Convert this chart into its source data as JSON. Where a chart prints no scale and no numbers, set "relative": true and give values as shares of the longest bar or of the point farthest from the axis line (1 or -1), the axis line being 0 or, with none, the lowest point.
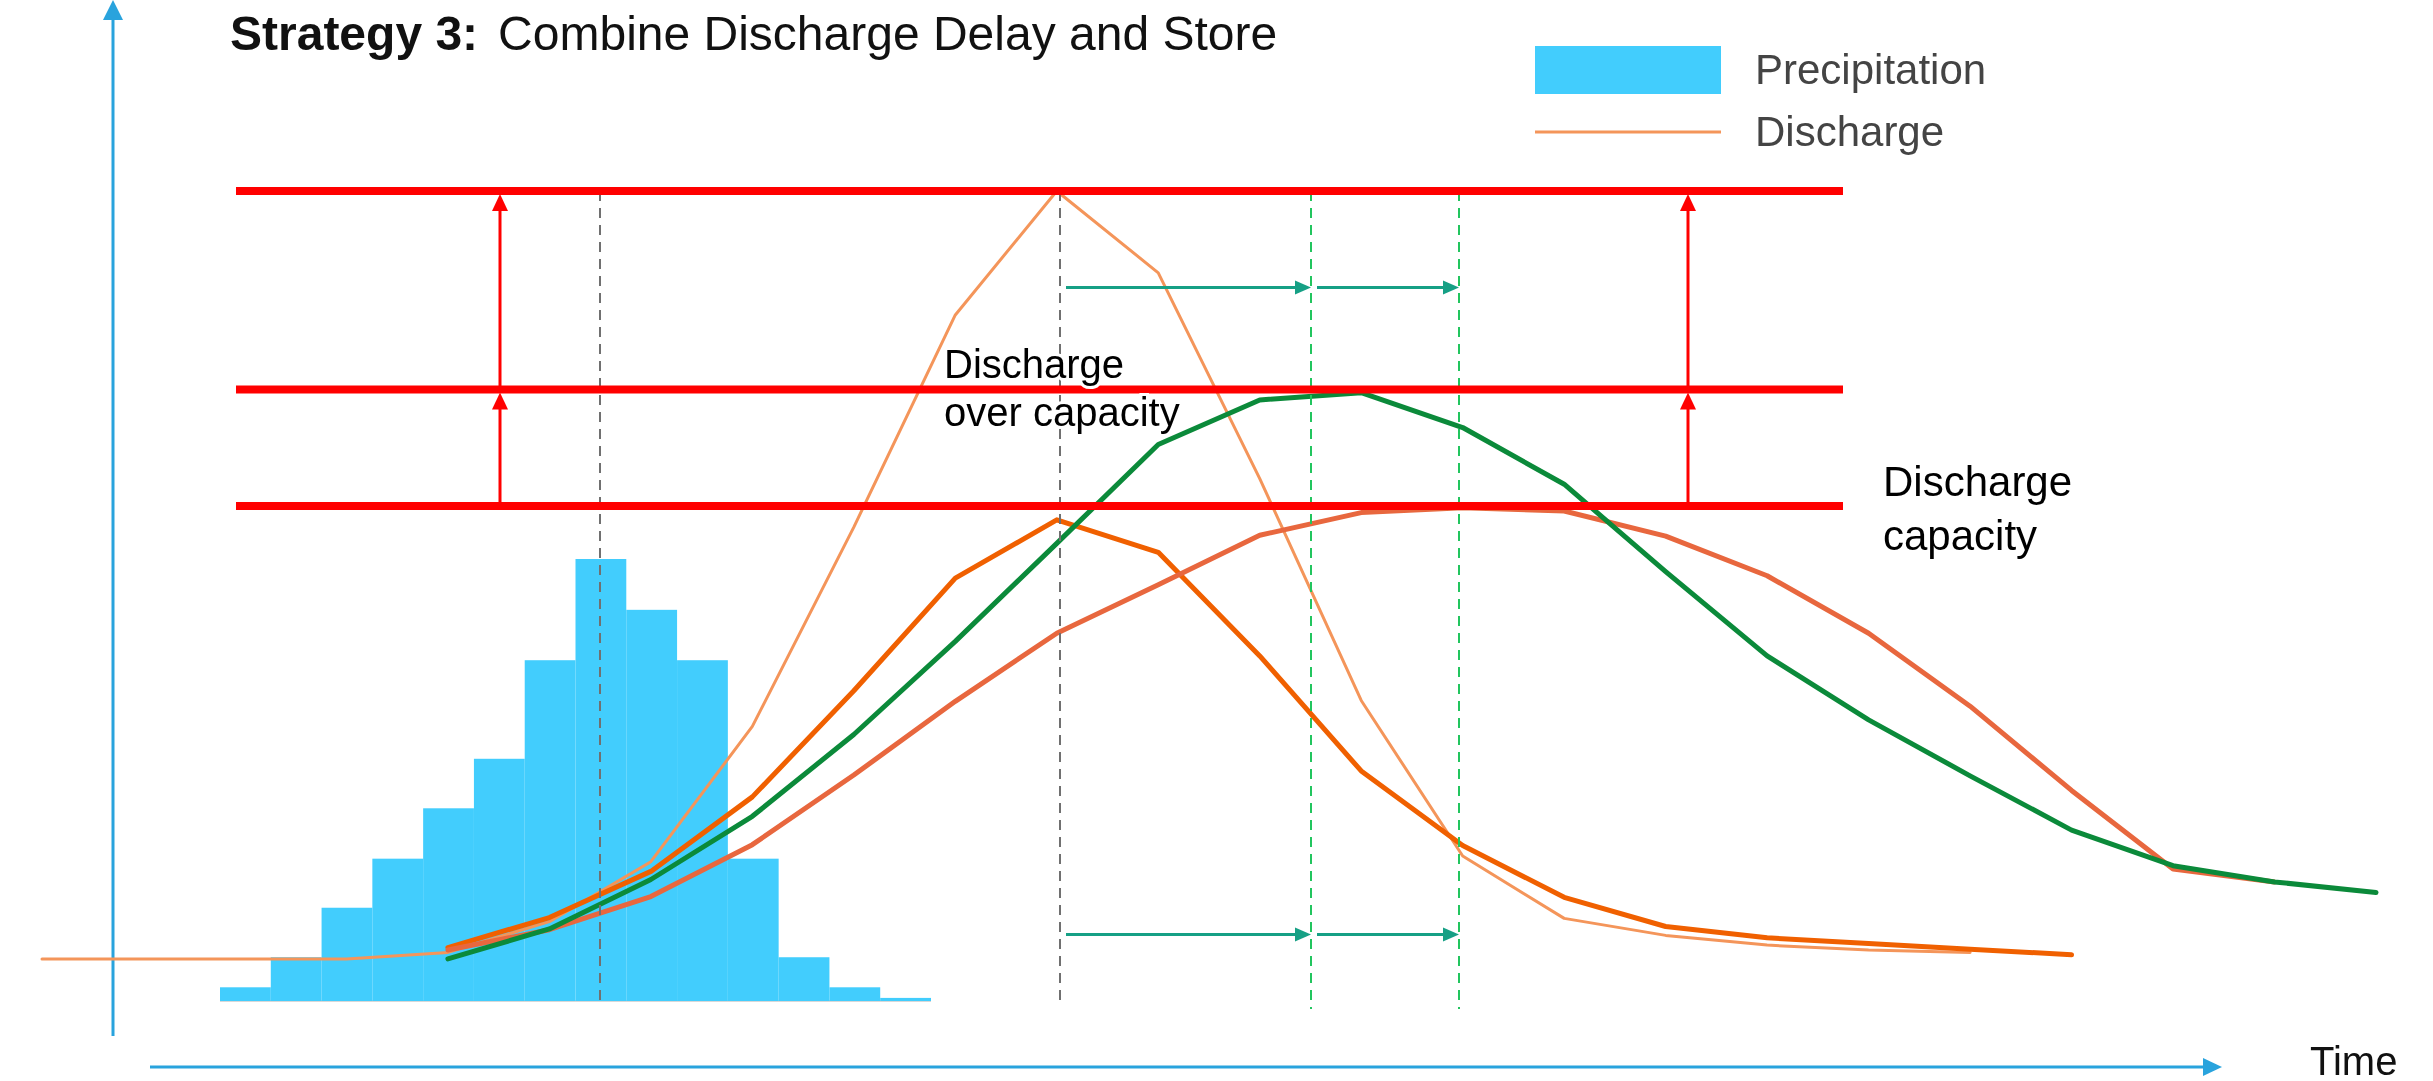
{
  "chart_data": [
    {
      "type": "bar",
      "relative": true,
      "legend": "top right",
      "categories": [
        null,
        null,
        null,
        null,
        null,
        null,
        null,
        null,
        null,
        null,
        null,
        null,
        null,
        null
      ],
      "series": [
        {
          "name": "Precipitation",
          "color": "#42cdfd",
          "values": [
            0.031,
            0.099,
            0.211,
            0.322,
            0.436,
            0.548,
            0.771,
            1,
            0.885,
            0.771,
            0.322,
            0.099,
            0.031,
            0.007
          ]
        }
      ]
    },
    {
      "type": "line",
      "relative": true,
      "title": "Strategy 3:",
      "subtitle": "Combine Discharge Delay and Store",
      "xlabel": "Time",
      "legend": "top right",
      "categories": [
        null,
        null,
        null,
        null,
        null,
        null,
        null,
        null,
        null,
        null,
        null,
        null,
        null,
        null,
        null,
        null,
        null,
        null,
        null,
        null,
        null,
        null,
        null,
        null
      ],
      "series": [
        {
          "name": "Discharge",
          "color": "#f4955a",
          "values": [
            0.052,
            0.052,
            0.052,
            0.052,
            0.06,
            0.098,
            0.172,
            0.339,
            0.585,
            0.847,
            1,
            0.899,
            0.645,
            0.371,
            0.179,
            0.102,
            0.081,
            0.069,
            0.063,
            0.06,
            null,
            null,
            null,
            null
          ]
        },
        {
          "color": "#f06000",
          "values": [
            null,
            null,
            null,
            null,
            0.066,
            0.103,
            0.16,
            0.252,
            0.383,
            0.522,
            0.594,
            0.554,
            0.426,
            0.284,
            0.192,
            0.128,
            0.092,
            0.078,
            0.071,
            0.064,
            0.057,
            null,
            null,
            null
          ]
        },
        {
          "color": "#e8673e",
          "values": [
            null,
            null,
            null,
            null,
            0.063,
            0.088,
            0.129,
            0.193,
            0.279,
            0.37,
            0.454,
            0.514,
            0.575,
            0.603,
            0.609,
            0.605,
            0.574,
            0.525,
            0.454,
            0.364,
            0.26,
            0.163,
            0.147,
            null
          ]
        },
        {
          "color": "#0b8a3a",
          "values": [
            null,
            null,
            null,
            null,
            0.052,
            0.089,
            0.15,
            0.228,
            0.329,
            0.444,
            0.565,
            0.687,
            0.742,
            0.751,
            0.708,
            0.638,
            0.53,
            0.426,
            0.347,
            0.278,
            0.211,
            0.167,
            0.147,
            0.134
          ]
        }
      ],
      "ref_lines": [
        {
          "axis": "y",
          "value": 1,
          "color": "#ff0000"
        },
        {
          "axis": "y",
          "value": 0.755,
          "color": "#ff0000"
        },
        {
          "axis": "y",
          "value": 0.611,
          "label": "Discharge capacity",
          "color": "#ff0000"
        }
      ],
      "annotations": [
        "Discharge over capacity"
      ]
    }
  ]
}
